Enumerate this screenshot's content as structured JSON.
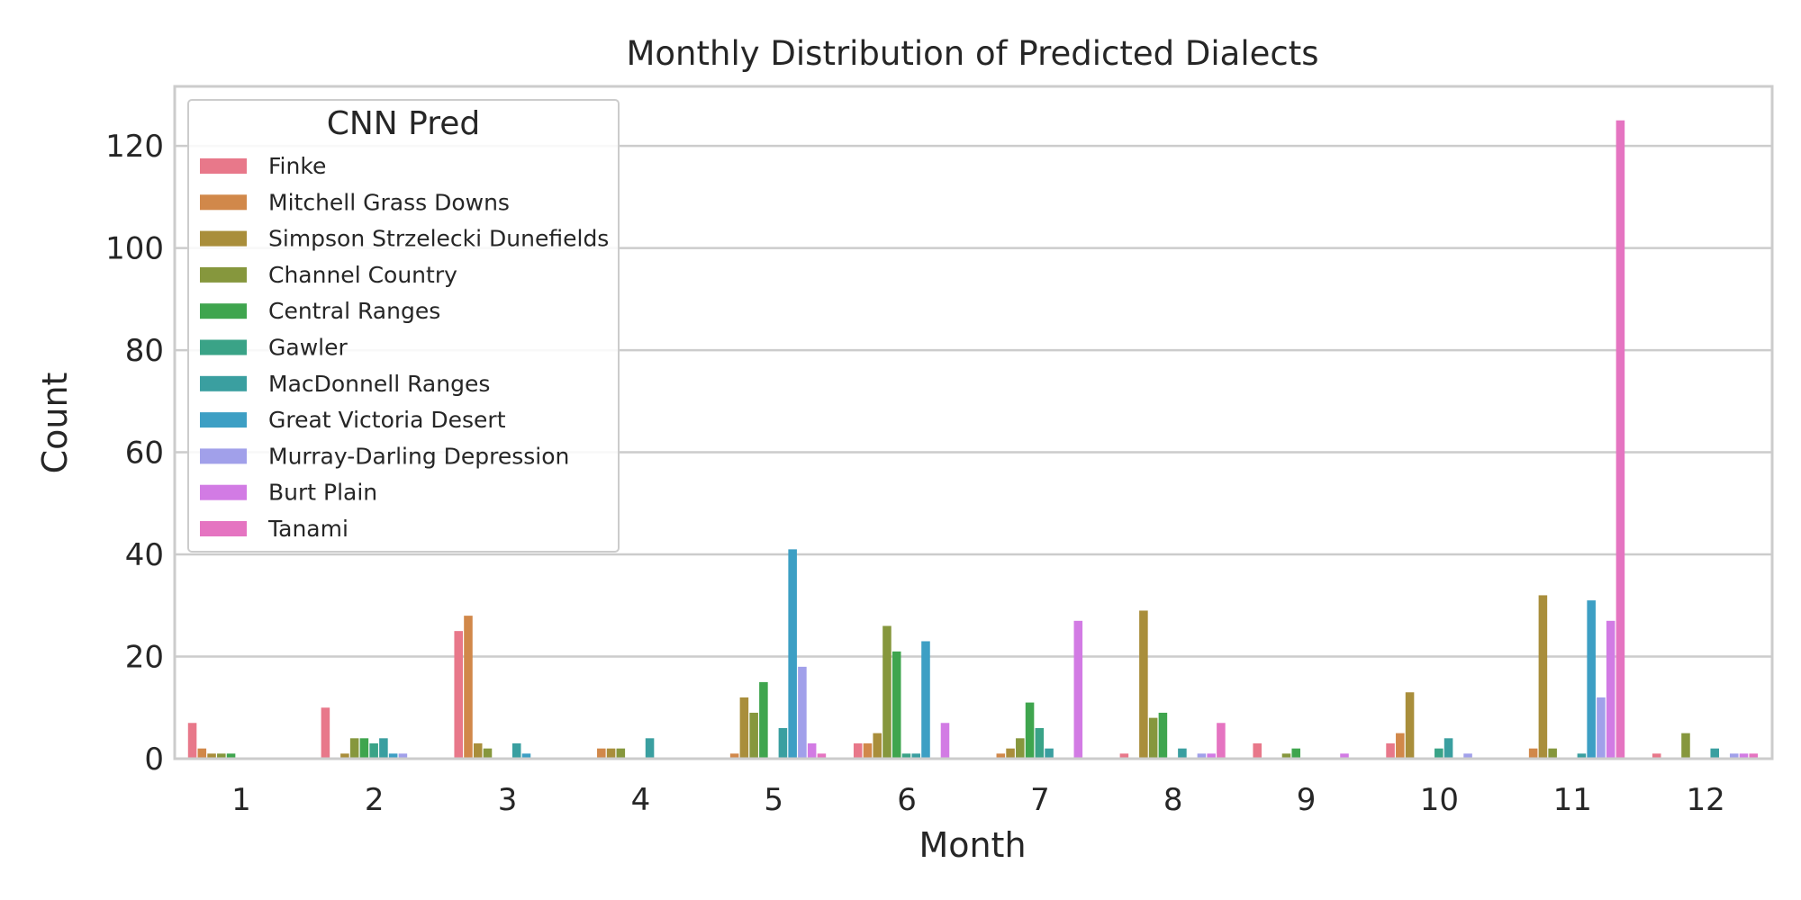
{
  "chart_data": {
    "type": "bar",
    "title": "Monthly Distribution of Predicted Dialects",
    "xlabel": "Month",
    "ylabel": "Count",
    "ylim": [
      0,
      131
    ],
    "yticks": [
      0,
      20,
      40,
      60,
      80,
      100,
      120
    ],
    "grid": true,
    "legend": {
      "title": "CNN Pred",
      "placement": "top-left"
    },
    "categories": [
      "1",
      "2",
      "3",
      "4",
      "5",
      "6",
      "7",
      "8",
      "9",
      "10",
      "11",
      "12"
    ],
    "series": [
      {
        "name": "Finke",
        "color": "#e8788a",
        "values": [
          7,
          10,
          25,
          0,
          0,
          3,
          0,
          1,
          3,
          3,
          0,
          1
        ]
      },
      {
        "name": "Mitchell Grass Downs",
        "color": "#d1884a",
        "values": [
          2,
          0,
          28,
          2,
          1,
          3,
          1,
          0,
          0,
          5,
          2,
          0
        ]
      },
      {
        "name": "Simpson Strzelecki Dunefields",
        "color": "#a98e3b",
        "values": [
          1,
          1,
          3,
          2,
          12,
          5,
          2,
          29,
          0,
          13,
          32,
          0
        ]
      },
      {
        "name": "Channel Country",
        "color": "#86973d",
        "values": [
          1,
          4,
          2,
          2,
          9,
          26,
          4,
          8,
          1,
          0,
          2,
          5
        ]
      },
      {
        "name": "Central Ranges",
        "color": "#3fa54e",
        "values": [
          1,
          4,
          0,
          0,
          15,
          21,
          11,
          9,
          2,
          0,
          0,
          0
        ]
      },
      {
        "name": "Gawler",
        "color": "#3aa387",
        "values": [
          0,
          3,
          0,
          0,
          0,
          1,
          6,
          0,
          0,
          2,
          0,
          0
        ]
      },
      {
        "name": "MacDonnell Ranges",
        "color": "#3a9fa0",
        "values": [
          0,
          4,
          3,
          4,
          6,
          1,
          2,
          2,
          0,
          4,
          1,
          2
        ]
      },
      {
        "name": "Great Victoria Desert",
        "color": "#3d9fc4",
        "values": [
          0,
          1,
          1,
          0,
          41,
          23,
          0,
          0,
          0,
          0,
          31,
          0
        ]
      },
      {
        "name": "Murray-Darling Depression",
        "color": "#a1a0ea",
        "values": [
          0,
          1,
          0,
          0,
          18,
          0,
          0,
          1,
          0,
          1,
          12,
          1
        ]
      },
      {
        "name": "Burt Plain",
        "color": "#d27be4",
        "values": [
          0,
          0,
          0,
          0,
          3,
          7,
          27,
          1,
          1,
          0,
          27,
          1
        ]
      },
      {
        "name": "Tanami",
        "color": "#e574c1",
        "values": [
          0,
          0,
          0,
          0,
          1,
          0,
          0,
          7,
          0,
          0,
          125,
          1
        ]
      }
    ]
  }
}
